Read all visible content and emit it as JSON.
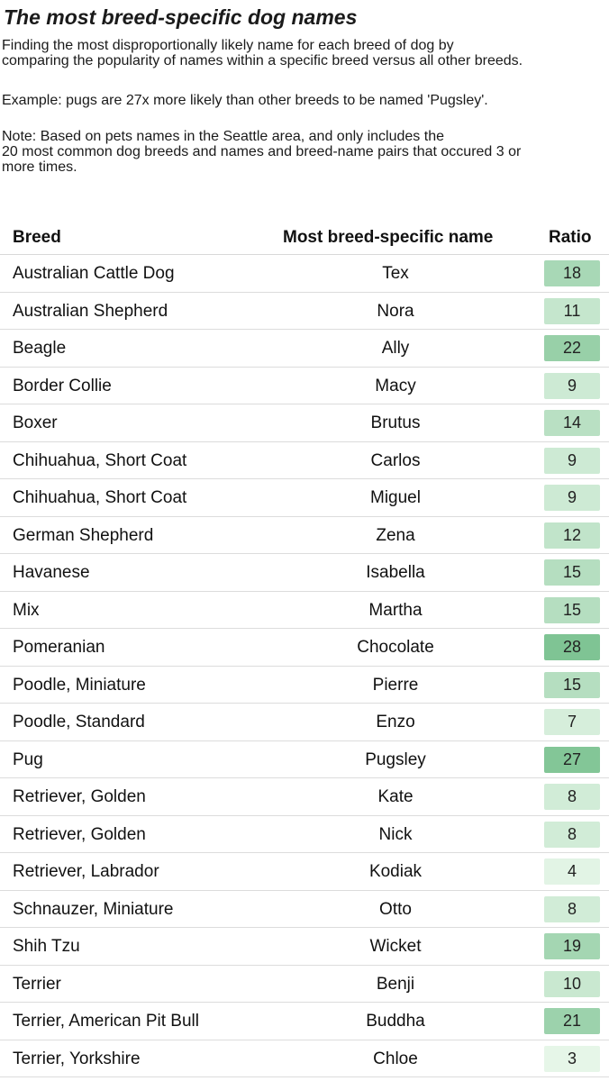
{
  "title": "The most breed-specific dog names",
  "intro": "Finding the most disproportionally likely name for each breed of dog by\ncomparing the popularity of names within a specific breed versus all other breeds.",
  "example": "Example: pugs are 27x more likely than other breeds to be named 'Pugsley'.",
  "note": "Note: Based on pets names in the Seattle area, and only includes the\n20 most common dog breeds and names and breed-name pairs that occured 3 or\nmore times.",
  "columns": {
    "breed": "Breed",
    "name": "Most breed-specific name",
    "ratio": "Ratio"
  },
  "colors": {
    "ratio_low": "#e6f6e8",
    "ratio_high": "#7fc494",
    "grid": "#dcdcdc"
  },
  "chart_data": {
    "type": "table",
    "columns": [
      "Breed",
      "Most breed-specific name",
      "Ratio"
    ],
    "rows": [
      [
        "Australian Cattle Dog",
        "Tex",
        18
      ],
      [
        "Australian Shepherd",
        "Nora",
        11
      ],
      [
        "Beagle",
        "Ally",
        22
      ],
      [
        "Border Collie",
        "Macy",
        9
      ],
      [
        "Boxer",
        "Brutus",
        14
      ],
      [
        "Chihuahua, Short Coat",
        "Carlos",
        9
      ],
      [
        "Chihuahua, Short Coat",
        "Miguel",
        9
      ],
      [
        "German Shepherd",
        "Zena",
        12
      ],
      [
        "Havanese",
        "Isabella",
        15
      ],
      [
        "Mix",
        "Martha",
        15
      ],
      [
        "Pomeranian",
        "Chocolate",
        28
      ],
      [
        "Poodle, Miniature",
        "Pierre",
        15
      ],
      [
        "Poodle, Standard",
        "Enzo",
        7
      ],
      [
        "Pug",
        "Pugsley",
        27
      ],
      [
        "Retriever, Golden",
        "Kate",
        8
      ],
      [
        "Retriever, Golden",
        "Nick",
        8
      ],
      [
        "Retriever, Labrador",
        "Kodiak",
        4
      ],
      [
        "Schnauzer, Miniature",
        "Otto",
        8
      ],
      [
        "Shih Tzu",
        "Wicket",
        19
      ],
      [
        "Terrier",
        "Benji",
        10
      ],
      [
        "Terrier, American Pit Bull",
        "Buddha",
        21
      ],
      [
        "Terrier, Yorkshire",
        "Chloe",
        3
      ]
    ]
  }
}
